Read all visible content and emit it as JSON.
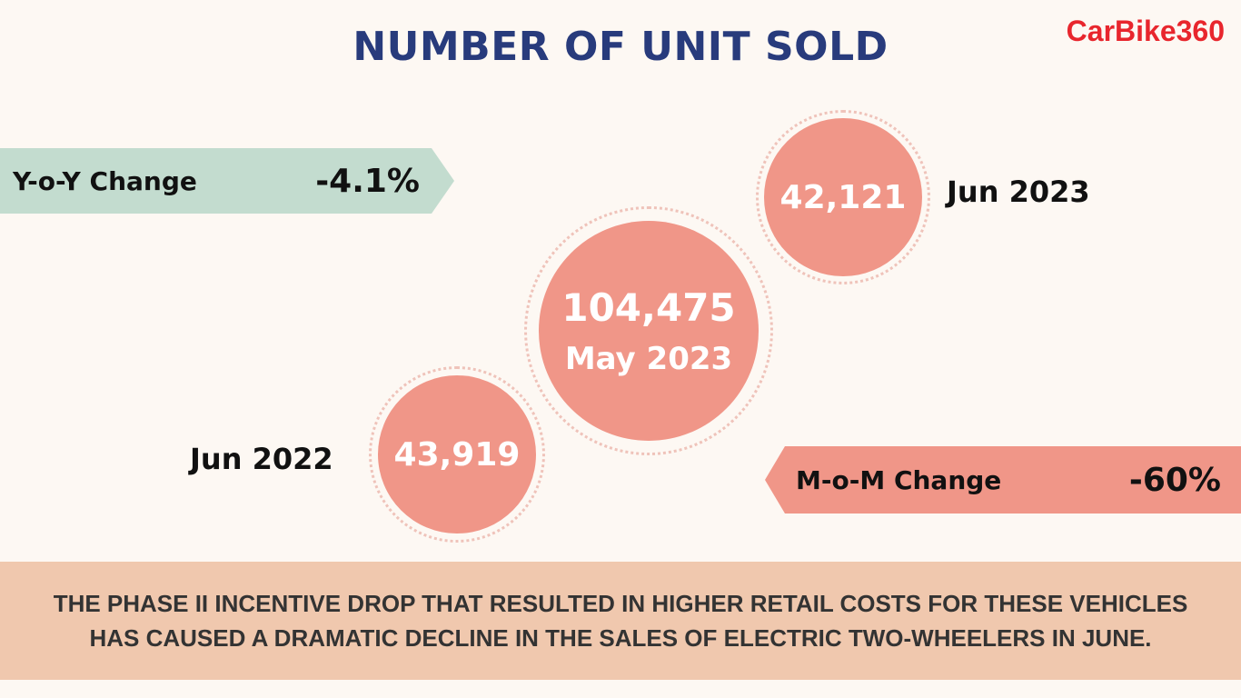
{
  "header": {
    "title": "NUMBER OF UNIT SOLD",
    "logo_text": "CarBike360"
  },
  "yoy": {
    "label": "Y-o-Y Change",
    "value": "-4.1%"
  },
  "mom": {
    "label": "M-o-M Change",
    "value": "-60%"
  },
  "circles": {
    "jun_2023": {
      "value": "42,121",
      "label": "Jun 2023"
    },
    "may_2023": {
      "value": "104,475",
      "label": "May 2023"
    },
    "jun_2022": {
      "value": "43,919",
      "label": "Jun 2022"
    }
  },
  "footer": {
    "text": "THE PHASE II INCENTIVE DROP THAT RESULTED IN HIGHER RETAIL COSTS FOR THESE VEHICLES HAS CAUSED A DRAMATIC DECLINE IN THE SALES OF ELECTRIC TWO-WHEELERS IN JUNE."
  },
  "colors": {
    "title": "#283b7c",
    "logo": "#e8262d",
    "circle": "#f09688",
    "yoy_banner": "#c3dccf",
    "mom_banner": "#f09688",
    "footer_band": "#f0c8ae",
    "background": "#fdf8f3"
  }
}
